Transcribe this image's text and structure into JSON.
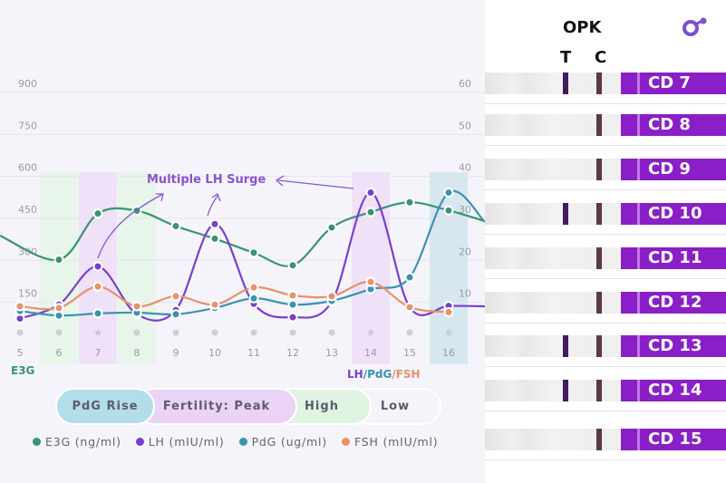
{
  "chart_data": {
    "type": "line",
    "x": [
      5,
      6,
      7,
      8,
      9,
      10,
      11,
      12,
      13,
      14,
      15,
      16
    ],
    "left_axis": {
      "label": "E3G",
      "ticks": [
        150,
        300,
        450,
        600,
        750,
        900
      ],
      "range": [
        0,
        900
      ]
    },
    "right_axis": {
      "label_parts": [
        "LH",
        "/",
        "PdG",
        "/",
        "FSH"
      ],
      "ticks": [
        10,
        20,
        30,
        40,
        50,
        60
      ],
      "range": [
        0,
        60
      ]
    },
    "series": [
      {
        "name": "E3G (ng/ml)",
        "axis": "left",
        "color": "#3a9471",
        "values": [
          null,
          270,
          435,
          445,
          390,
          345,
          295,
          250,
          385,
          440,
          475,
          446
        ]
      },
      {
        "name": "LH (mIU/ml)",
        "axis": "right",
        "color": "#7a3fd0",
        "values": [
          4,
          7.3,
          16.4,
          5,
          6,
          26.5,
          7.5,
          4.3,
          8,
          34,
          6.7,
          7
        ]
      },
      {
        "name": "PdG (ug/ml)",
        "axis": "right",
        "color": "#3a93b0",
        "values": [
          5.8,
          4.7,
          5.2,
          5.4,
          5,
          6.5,
          8.8,
          7.3,
          8.2,
          11,
          13.8,
          34
        ]
      },
      {
        "name": "FSH (mIU/ml)",
        "axis": "right",
        "color": "#e8916a",
        "values": [
          6.9,
          6.5,
          11.6,
          6.9,
          9.3,
          7.3,
          11.4,
          9.5,
          9.3,
          12.7,
          6.7,
          5.5
        ]
      }
    ],
    "day_markers": [
      "dot",
      "dot",
      "star",
      "dot",
      "dot",
      "dot",
      "dot",
      "dot",
      "dot",
      "star",
      "dot",
      "dot"
    ],
    "phase_bands": [
      {
        "day": 6,
        "phase": "High"
      },
      {
        "day": 7,
        "phase": "Peak"
      },
      {
        "day": 8,
        "phase": "High"
      },
      {
        "day": 14,
        "phase": "Peak"
      },
      {
        "day": 16,
        "phase": "PdG Rise"
      }
    ],
    "annotation": "Multiple LH Surge",
    "grid": true,
    "legend_position": "bottom"
  },
  "phases": [
    {
      "label": "PdG Rise",
      "color": "#b3dde9"
    },
    {
      "label": "Fertility: Peak",
      "color": "#ead3f7"
    },
    {
      "label": "High",
      "color": "#dff5e2"
    },
    {
      "label": "Low",
      "color": "#f5f4fa"
    }
  ],
  "opk": {
    "title": "OPK",
    "t_label": "T",
    "c_label": "C",
    "strips": [
      {
        "label": "CD 7",
        "t_line": true
      },
      {
        "label": "CD 8",
        "t_line": false
      },
      {
        "label": "CD 9",
        "t_line": false
      },
      {
        "label": "CD 10",
        "t_line": true
      },
      {
        "label": "CD 11",
        "t_line": false
      },
      {
        "label": "CD 12",
        "t_line": false
      },
      {
        "label": "CD 13",
        "t_line": true
      },
      {
        "label": "CD 14",
        "t_line": true
      },
      {
        "label": "CD 15",
        "t_line": false
      }
    ]
  },
  "colors": {
    "brand": "#8a1fc7",
    "logo": "#7b4fd6"
  }
}
